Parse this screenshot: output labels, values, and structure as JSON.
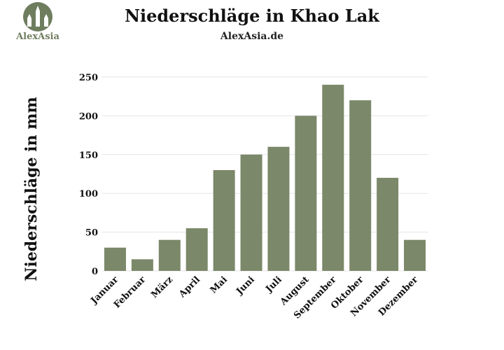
{
  "header": {
    "title": "Niederschläge in Khao Lak",
    "subtitle": "AlexAsia.de",
    "logo_text": "AlexAsia"
  },
  "colors": {
    "bar": "#7b8869",
    "logo": "#6f7d5f",
    "grid": "#e6e6e6"
  },
  "chart_data": {
    "type": "bar",
    "title": "Niederschläge in Khao Lak",
    "subtitle": "AlexAsia.de",
    "xlabel": "",
    "ylabel": "Niederschläge in mm",
    "categories": [
      "Januar",
      "Februar",
      "März",
      "April",
      "Mai",
      "Juni",
      "Juli",
      "August",
      "September",
      "Oktober",
      "November",
      "Dezember"
    ],
    "values": [
      30,
      15,
      40,
      55,
      130,
      150,
      160,
      200,
      240,
      220,
      120,
      40
    ],
    "ylim": [
      0,
      250
    ],
    "yticks": [
      0,
      50,
      100,
      150,
      200,
      250
    ],
    "grid": true,
    "legend": "none"
  }
}
